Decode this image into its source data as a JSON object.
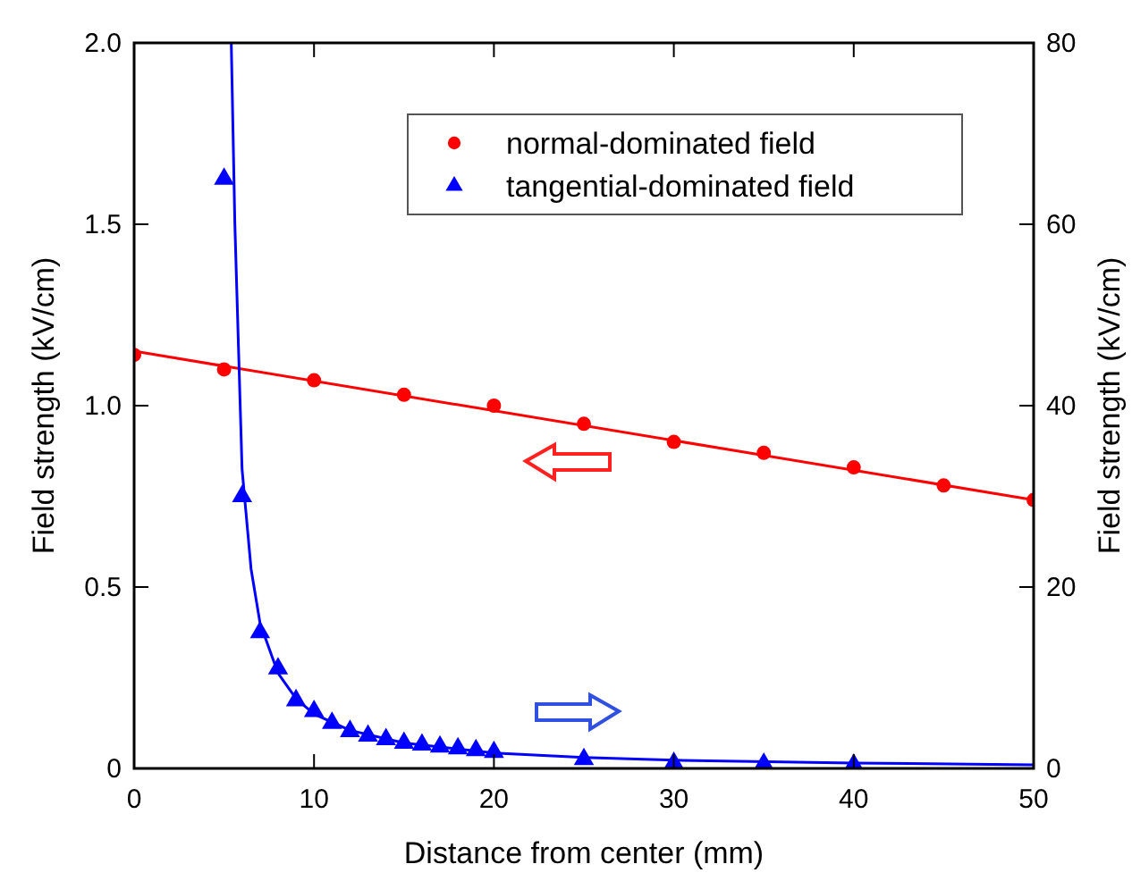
{
  "chart_data": {
    "type": "scatter",
    "xlabel": "Distance from center (mm)",
    "ylabel": "Field strength (kV/cm)",
    "y2label": "Field strength (kV/cm)",
    "xlim": [
      0,
      50
    ],
    "xticks": [
      0,
      10,
      20,
      30,
      40,
      50
    ],
    "ylim": [
      0,
      2
    ],
    "yticks": [
      0,
      {
        "value": 0.5,
        "label": "0.5"
      },
      {
        "value": 1,
        "label": "1.0"
      },
      {
        "value": 1.5,
        "label": "1.5"
      },
      {
        "value": 2,
        "label": "2.0"
      }
    ],
    "y2lim": [
      0,
      80
    ],
    "y2ticks": [
      0,
      20,
      40,
      60,
      80
    ],
    "legend": "top right",
    "grid": false,
    "series": [
      {
        "name": "normal-dominated field",
        "marker": "circle",
        "color": "#ff0000",
        "x": [
          0,
          5,
          10,
          15,
          20,
          25,
          30,
          35,
          40,
          45,
          50
        ],
        "values": [
          1.14,
          1.1,
          1.07,
          1.03,
          1.0,
          0.95,
          0.9,
          0.87,
          0.83,
          0.78,
          0.74
        ]
      },
      {
        "name": "tangential-dominated field",
        "marker": "triangle",
        "axis": "y2",
        "color": "#0000ff",
        "x": [
          5,
          6,
          7,
          8,
          9,
          10,
          11,
          12,
          13,
          14,
          15,
          16,
          17,
          18,
          19,
          20,
          25,
          30,
          35,
          40
        ],
        "values": [
          65,
          30,
          15,
          11,
          7.5,
          6.3,
          5,
          4.1,
          3.6,
          3.2,
          2.8,
          2.6,
          2.4,
          2.2,
          2,
          1.8,
          1,
          0.6,
          0.5,
          0.4
        ]
      },
      {
        "type": "line",
        "marker": "none",
        "color": "#ff0000",
        "x": [
          0,
          50
        ],
        "values": [
          1.15,
          0.74
        ]
      },
      {
        "type": "line",
        "marker": "none",
        "axis": "y2",
        "color": "#0000ff",
        "x": [
          5.4,
          5.6,
          6,
          6.5,
          7,
          8,
          9,
          10,
          12,
          15,
          20,
          25,
          30,
          40,
          50
        ],
        "values": [
          80,
          60,
          33,
          22,
          16,
          10.5,
          7.7,
          6,
          4.2,
          2.8,
          1.7,
          1.2,
          0.9,
          0.6,
          0.4
        ]
      }
    ]
  }
}
